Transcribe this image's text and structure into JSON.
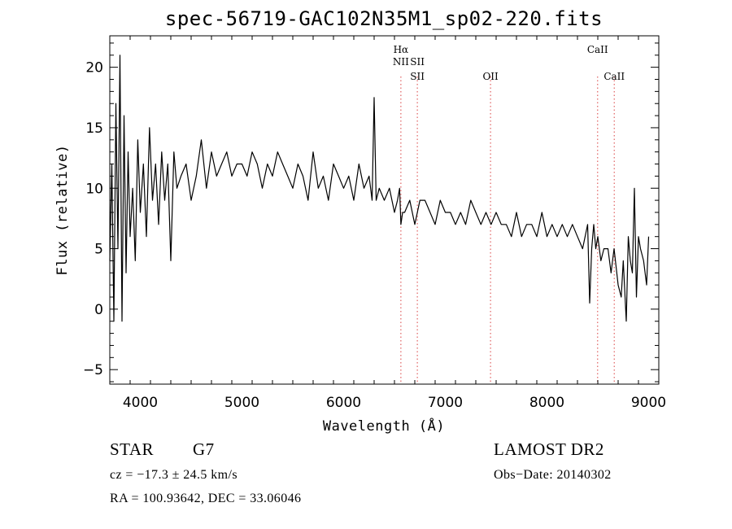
{
  "chart_data": {
    "type": "line",
    "title": "spec-56719-GAC102N35M1_sp02-220.fits",
    "xlabel": "Wavelength (Å)",
    "ylabel": "Flux (relative)",
    "xlim": [
      3700,
      9100
    ],
    "ylim": [
      -6.2,
      22.6
    ],
    "x_ticks": [
      4000,
      5000,
      6000,
      7000,
      8000,
      9000
    ],
    "x_tick_labels": [
      "4000",
      "5000",
      "6000",
      "7000",
      "8000",
      "9000"
    ],
    "y_ticks": [
      -5,
      0,
      5,
      10,
      15,
      20
    ],
    "y_tick_labels": [
      "−5",
      "0",
      "5",
      "10",
      "15",
      "20"
    ],
    "grid": false,
    "line_color": "#000000",
    "marker_color": "#e06060",
    "series": [
      {
        "x": [
          3700,
          3720,
          3740,
          3760,
          3780,
          3800,
          3820,
          3840,
          3860,
          3880,
          3900,
          3925,
          3950,
          3975,
          4000,
          4030,
          4060,
          4090,
          4120,
          4150,
          4180,
          4210,
          4240,
          4270,
          4300,
          4330,
          4360,
          4400,
          4450,
          4500,
          4550,
          4600,
          4650,
          4700,
          4750,
          4800,
          4850,
          4900,
          4950,
          5000,
          5050,
          5100,
          5150,
          5200,
          5250,
          5300,
          5350,
          5400,
          5450,
          5500,
          5550,
          5600,
          5650,
          5700,
          5750,
          5800,
          5850,
          5900,
          5950,
          6000,
          6050,
          6100,
          6150,
          6200,
          6250,
          6280,
          6300,
          6320,
          6350,
          6400,
          6450,
          6500,
          6530,
          6550,
          6563,
          6580,
          6600,
          6650,
          6700,
          6750,
          6800,
          6850,
          6900,
          6950,
          7000,
          7050,
          7100,
          7150,
          7200,
          7250,
          7300,
          7350,
          7400,
          7450,
          7500,
          7550,
          7600,
          7650,
          7700,
          7750,
          7800,
          7850,
          7900,
          7950,
          8000,
          8050,
          8100,
          8150,
          8200,
          8250,
          8300,
          8350,
          8400,
          8420,
          8440,
          8460,
          8480,
          8500,
          8530,
          8560,
          8600,
          8630,
          8660,
          8700,
          8730,
          8750,
          8780,
          8800,
          8820,
          8840,
          8860,
          8880,
          8900,
          8920,
          8950,
          8980,
          9000
        ],
        "y": [
          4,
          12,
          -1,
          17,
          5,
          21,
          -1,
          16,
          3,
          13,
          6,
          10,
          4,
          14,
          8,
          12,
          6,
          15,
          9,
          12,
          7,
          13,
          9,
          12,
          4,
          13,
          10,
          11,
          12,
          9,
          11,
          14,
          10,
          13,
          11,
          12,
          13,
          11,
          12,
          12,
          11,
          13,
          12,
          10,
          12,
          11,
          13,
          12,
          11,
          10,
          12,
          11,
          9,
          13,
          10,
          11,
          9,
          12,
          11,
          10,
          11,
          9,
          12,
          10,
          11,
          9,
          17.5,
          9,
          10,
          9,
          10,
          8,
          9,
          10,
          7,
          8,
          8,
          9,
          7,
          9,
          9,
          8,
          7,
          9,
          8,
          8,
          7,
          8,
          7,
          9,
          8,
          7,
          8,
          7,
          8,
          7,
          7,
          6,
          8,
          6,
          7,
          7,
          6,
          8,
          6,
          7,
          6,
          7,
          6,
          7,
          6,
          5,
          7,
          0.5,
          5,
          7,
          5,
          6,
          4,
          5,
          5,
          3,
          5,
          2,
          1,
          4,
          -1,
          6,
          4,
          3,
          10,
          1,
          6,
          5,
          4,
          2,
          6
        ]
      }
    ],
    "lines": [
      {
        "x": 6563,
        "labels": [
          "Hα",
          "NII"
        ]
      },
      {
        "x": 6725,
        "labels": [
          "SII",
          "SII"
        ]
      },
      {
        "x": 7445,
        "labels": [
          "OII"
        ]
      },
      {
        "x": 8498,
        "labels": [
          "CaII"
        ]
      },
      {
        "x": 8662,
        "labels": [
          "CaII"
        ]
      }
    ]
  },
  "info": {
    "object_class": "STAR",
    "subclass": "G7",
    "survey": "LAMOST DR2",
    "cz": "cz = −17.3 ± 24.5 km/s",
    "obs_date": "Obs−Date: 20140302",
    "radec": "RA = 100.93642, DEC =  33.06046"
  }
}
